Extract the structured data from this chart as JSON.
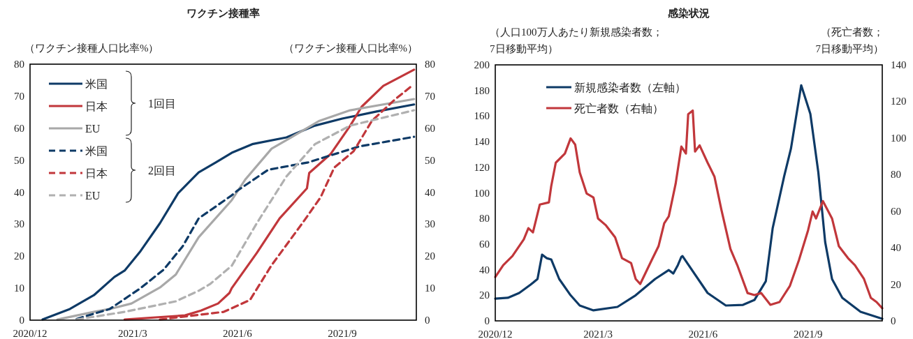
{
  "chart_data": [
    {
      "type": "line",
      "title": "ワクチン接種率",
      "ylabel": "（ワクチン接種人口比率%）",
      "y2label": "（ワクチン接種人口比率%）",
      "xlim": [
        "2020-12-01",
        "2021-11-05"
      ],
      "xticks": [
        {
          "value": "2020-12-01",
          "label": "2020/12"
        },
        {
          "value": "2021-03-01",
          "label": "2021/3"
        },
        {
          "value": "2021-06-01",
          "label": "2021/6"
        },
        {
          "value": "2021-09-01",
          "label": "2021/9"
        }
      ],
      "ylim": [
        0,
        80
      ],
      "yticks": [
        0,
        10,
        20,
        30,
        40,
        50,
        60,
        70,
        80
      ],
      "y2lim": [
        0,
        80
      ],
      "y2ticks": [
        0,
        10,
        20,
        30,
        40,
        50,
        60,
        70,
        80
      ],
      "legend": "top left",
      "annotations": [
        "1回目",
        "2回目"
      ],
      "series": [
        {
          "name": "米国",
          "color": "#0e3a66",
          "line_style": "solid",
          "x": [
            "2020-12-12",
            "2021-01-05",
            "2021-01-26",
            "2021-02-13",
            "2021-02-22",
            "2021-03-08",
            "2021-03-25",
            "2021-04-10",
            "2021-04-28",
            "2021-05-13",
            "2021-05-27",
            "2021-06-14",
            "2021-07-14",
            "2021-08-08",
            "2021-09-01",
            "2021-10-01",
            "2021-11-03"
          ],
          "values": [
            0.2,
            3.5,
            7.8,
            13.5,
            15.5,
            21.6,
            30.3,
            39.7,
            46.2,
            49.3,
            52.3,
            55,
            57.1,
            60.8,
            63,
            65.2,
            67.4
          ]
        },
        {
          "name": "日本",
          "color": "#c1373b",
          "line_style": "solid",
          "x": [
            "2021-02-22",
            "2021-04-16",
            "2021-04-30",
            "2021-05-15",
            "2021-05-25",
            "2021-05-27",
            "2021-06-18",
            "2021-07-08",
            "2021-08-01",
            "2021-08-03",
            "2021-08-22",
            "2021-09-08",
            "2021-09-18",
            "2021-10-07",
            "2021-11-03"
          ],
          "values": [
            0.2,
            1.5,
            3,
            5.2,
            8.5,
            10,
            21,
            31.8,
            41.2,
            46,
            52,
            60.8,
            66.7,
            73.2,
            78.3
          ]
        },
        {
          "name": "EU",
          "color": "#a8a8a8",
          "line_style": "solid",
          "x": [
            "2020-12-25",
            "2021-01-26",
            "2021-02-09",
            "2021-02-28",
            "2021-03-25",
            "2021-04-08",
            "2021-04-28",
            "2021-05-27",
            "2021-06-08",
            "2021-07-01",
            "2021-07-18",
            "2021-08-12",
            "2021-09-08",
            "2021-11-03"
          ],
          "values": [
            0.2,
            2.6,
            3.5,
            5.2,
            10.2,
            14.3,
            25.9,
            37.5,
            44,
            53.6,
            57.1,
            62.3,
            65.6,
            69.1
          ]
        },
        {
          "name": "米国",
          "color": "#0e3a66",
          "line_style": "dashed",
          "x": [
            "2021-01-11",
            "2021-02-09",
            "2021-03-08",
            "2021-03-28",
            "2021-04-14",
            "2021-04-28",
            "2021-05-27",
            "2021-06-01",
            "2021-06-28",
            "2021-08-02",
            "2021-09-16",
            "2021-11-03"
          ],
          "values": [
            0.4,
            3.5,
            10,
            15.7,
            23.1,
            31.8,
            39,
            40.5,
            47,
            49.3,
            54.3,
            57.3
          ]
        },
        {
          "name": "日本",
          "color": "#c1373b",
          "line_style": "dashed",
          "x": [
            "2021-03-25",
            "2021-05-20",
            "2021-06-12",
            "2021-07-01",
            "2021-07-28",
            "2021-08-13",
            "2021-08-25",
            "2021-09-11",
            "2021-09-27",
            "2021-10-17",
            "2021-11-01"
          ],
          "values": [
            0.2,
            2.6,
            6.3,
            17.2,
            30.3,
            38.4,
            47.7,
            52.8,
            62.3,
            68.9,
            73.2
          ]
        },
        {
          "name": "EU",
          "color": "#b0b0b0",
          "line_style": "dashed",
          "x": [
            "2021-01-11",
            "2021-02-22",
            "2021-04-08",
            "2021-04-28",
            "2021-05-08",
            "2021-05-27",
            "2021-06-18",
            "2021-07-14",
            "2021-08-08",
            "2021-09-08",
            "2021-11-03"
          ],
          "values": [
            0.2,
            2.6,
            5.9,
            9.2,
            11.3,
            17,
            30.3,
            44.9,
            55,
            60.8,
            65.6
          ]
        }
      ]
    },
    {
      "type": "line",
      "title": "感染状況",
      "ylabel": "（人口100万人あたり新規感染者数；\n7日移動平均）",
      "y2label": "（死亡者数；\n7日移動平均）",
      "xlim": [
        "2020-12-01",
        "2021-11-05"
      ],
      "xticks": [
        {
          "value": "2020-12-01",
          "label": "2020/12"
        },
        {
          "value": "2021-03-01",
          "label": "2021/3"
        },
        {
          "value": "2021-06-01",
          "label": "2021/6"
        },
        {
          "value": "2021-09-01",
          "label": "2021/9"
        }
      ],
      "ylim": [
        0,
        200
      ],
      "yticks": [
        0,
        20,
        40,
        60,
        80,
        100,
        120,
        140,
        160,
        180,
        200
      ],
      "y2lim": [
        0,
        140
      ],
      "y2ticks": [
        0,
        20,
        40,
        60,
        80,
        100,
        120,
        140
      ],
      "legend": "top left",
      "series": [
        {
          "name": "新規感染者数（左軸）",
          "color": "#0e3a66",
          "axis": "y",
          "x": [
            "2020-12-01",
            "2020-12-12",
            "2020-12-22",
            "2021-01-01",
            "2021-01-07",
            "2021-01-11",
            "2021-01-15",
            "2021-01-19",
            "2021-01-26",
            "2021-02-05",
            "2021-02-13",
            "2021-02-25",
            "2021-03-18",
            "2021-04-03",
            "2021-04-20",
            "2021-05-02",
            "2021-05-06",
            "2021-05-10",
            "2021-05-13",
            "2021-05-14",
            "2021-06-05",
            "2021-06-21",
            "2021-07-06",
            "2021-07-16",
            "2021-07-26",
            "2021-08-01",
            "2021-08-11",
            "2021-08-17",
            "2021-08-26",
            "2021-09-03",
            "2021-09-10",
            "2021-09-16",
            "2021-09-22",
            "2021-10-01",
            "2021-10-17",
            "2021-11-05"
          ],
          "values": [
            17.4,
            18,
            21.8,
            28.3,
            32.7,
            51.7,
            49,
            48,
            32.7,
            20,
            12,
            8.2,
            10.9,
            20,
            32.7,
            39.7,
            37,
            43.6,
            50,
            50.6,
            21.8,
            12,
            12.5,
            16.3,
            31,
            72.4,
            112.7,
            134.5,
            184,
            161.7,
            116,
            61.5,
            32.7,
            18,
            7.1,
            1.6
          ]
        },
        {
          "name": "死亡者数（右軸）",
          "color": "#c1373b",
          "axis": "y2",
          "x": [
            "2020-12-01",
            "2020-12-08",
            "2020-12-16",
            "2020-12-26",
            "2020-12-30",
            "2021-01-03",
            "2021-01-09",
            "2021-01-17",
            "2021-01-19",
            "2021-01-23",
            "2021-01-31",
            "2021-02-05",
            "2021-02-09",
            "2021-02-13",
            "2021-02-19",
            "2021-02-25",
            "2021-03-01",
            "2021-03-08",
            "2021-03-16",
            "2021-03-22",
            "2021-03-30",
            "2021-04-03",
            "2021-04-07",
            "2021-04-17",
            "2021-04-23",
            "2021-04-28",
            "2021-05-02",
            "2021-05-08",
            "2021-05-13",
            "2021-05-17",
            "2021-05-19",
            "2021-05-23",
            "2021-05-25",
            "2021-05-29",
            "2021-06-05",
            "2021-06-11",
            "2021-06-17",
            "2021-06-25",
            "2021-07-01",
            "2021-07-10",
            "2021-07-16",
            "2021-07-22",
            "2021-07-30",
            "2021-08-07",
            "2021-08-16",
            "2021-08-24",
            "2021-09-01",
            "2021-09-05",
            "2021-09-08",
            "2021-09-14",
            "2021-09-22",
            "2021-09-28",
            "2021-10-06",
            "2021-10-12",
            "2021-10-20",
            "2021-10-26",
            "2021-10-31",
            "2021-11-05"
          ],
          "values": [
            24,
            30.5,
            35.4,
            44.6,
            50.7,
            48.4,
            63.6,
            64.8,
            73.6,
            86.5,
            91.5,
            99.8,
            96.4,
            81.2,
            69.7,
            67.5,
            56,
            52.2,
            45.7,
            34.3,
            31.6,
            22.9,
            20.2,
            33.2,
            40.8,
            53.4,
            57.2,
            75,
            95.3,
            91.5,
            113,
            115,
            92.6,
            96,
            86.5,
            78.9,
            61,
            39.3,
            30.5,
            15.2,
            14.1,
            15.2,
            8.8,
            10.3,
            19,
            33.2,
            49.5,
            59.8,
            56,
            65.5,
            56,
            40.8,
            34.3,
            30.5,
            22.9,
            12.6,
            10.3,
            6.9
          ]
        }
      ]
    }
  ]
}
